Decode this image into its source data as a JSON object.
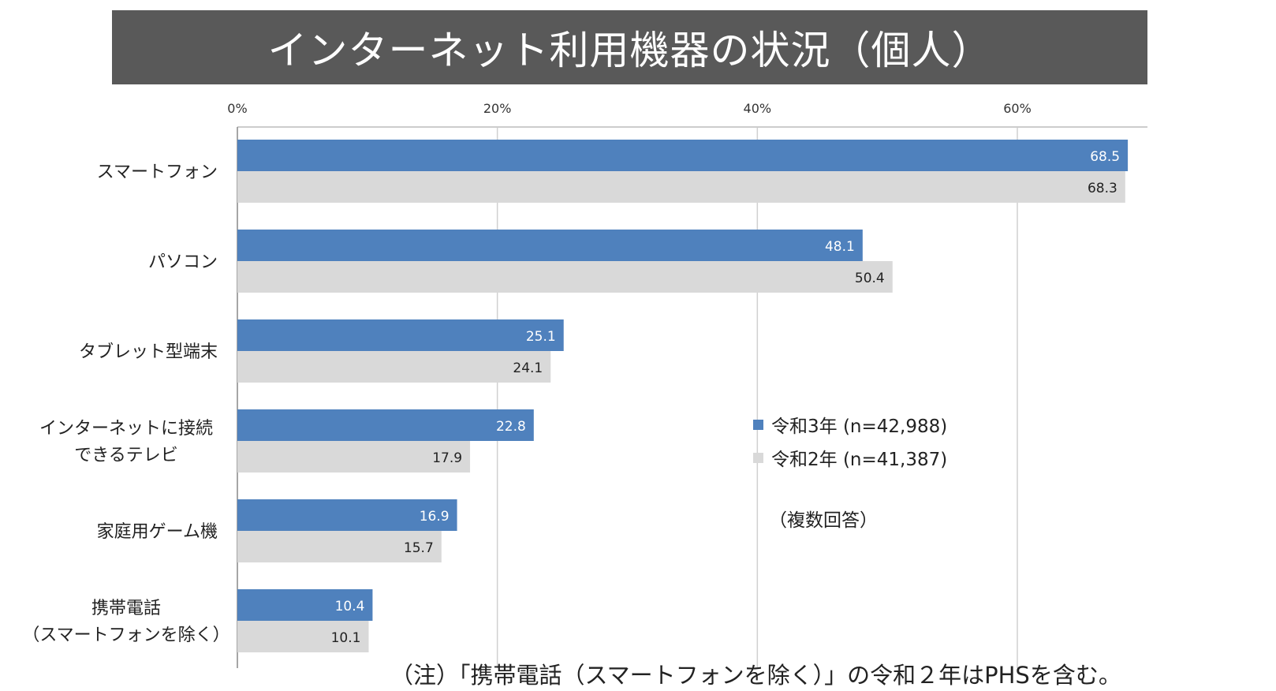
{
  "title": "インターネット利用機器の状況（個人）",
  "note": "（注）「携帯電話（スマートフォンを除く）」の令和２年はPHSを含む。",
  "chart_data": {
    "type": "bar",
    "orientation": "horizontal",
    "title": "インターネット利用機器の状況（個人）",
    "categories": [
      [
        "スマートフォン"
      ],
      [
        "パソコン"
      ],
      [
        "タブレット型端末"
      ],
      [
        "インターネットに接続",
        "できるテレビ"
      ],
      [
        "家庭用ゲーム機"
      ],
      [
        "携帯電話",
        "（スマートフォンを除く）"
      ]
    ],
    "series": [
      {
        "name": "令和3年 (n=42,988)",
        "color": "#4f81bd",
        "values": [
          68.5,
          48.1,
          25.1,
          22.8,
          16.9,
          10.4
        ]
      },
      {
        "name": "令和2年 (n=41,387)",
        "color": "#d9d9d9",
        "values": [
          68.3,
          50.4,
          24.1,
          17.9,
          15.7,
          10.1
        ]
      }
    ],
    "xlim": [
      0,
      70
    ],
    "xticks": [
      0,
      20,
      40,
      60
    ],
    "tick_labels": [
      "0%",
      "20%",
      "40%",
      "60%"
    ],
    "grid": true,
    "legend_position": "right-middle",
    "annotation": "（複数回答）"
  }
}
